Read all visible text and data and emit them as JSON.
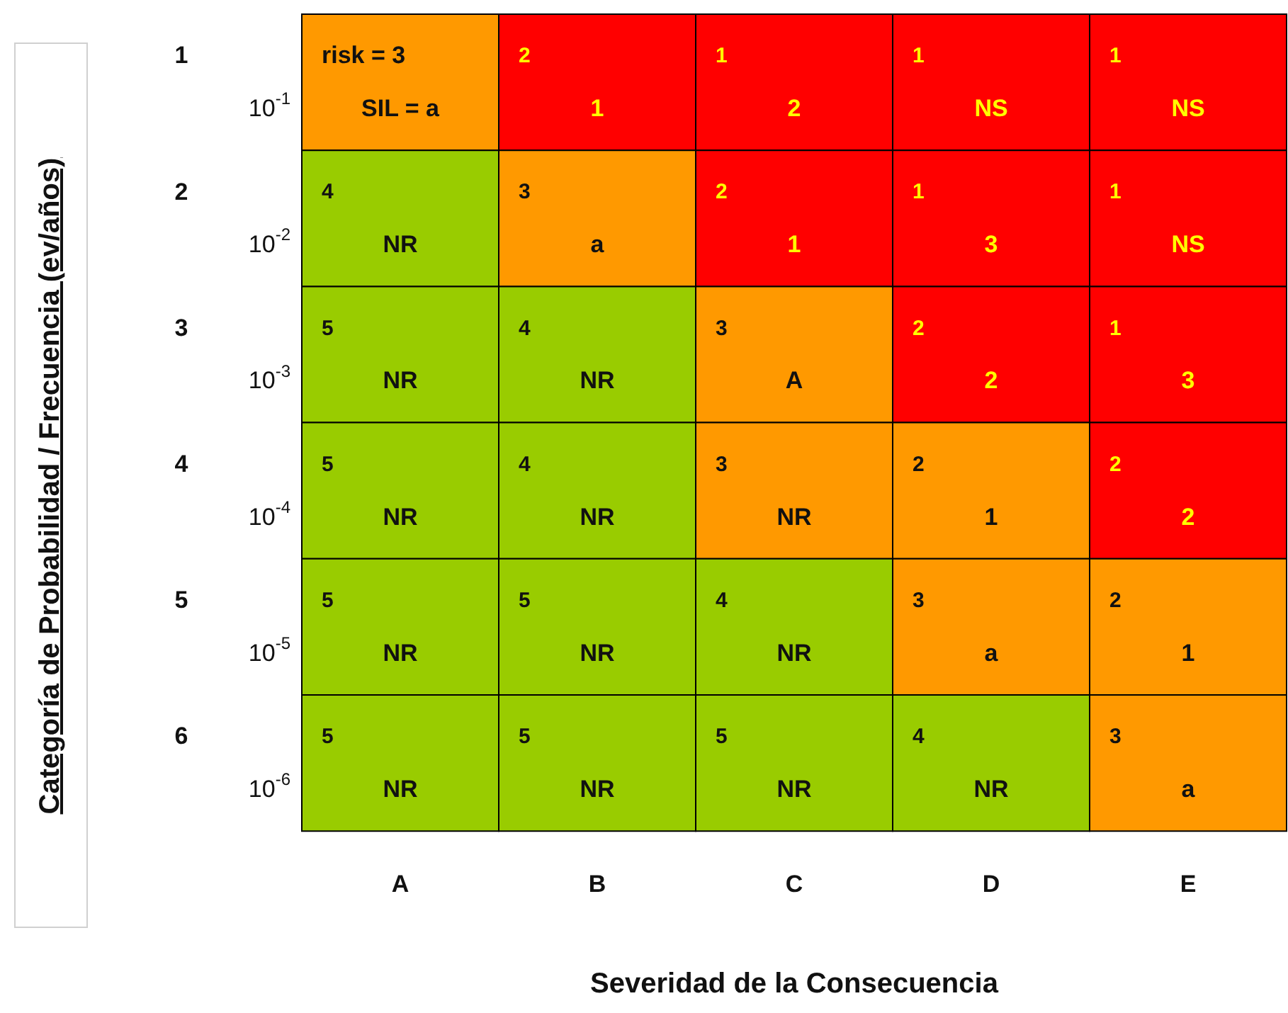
{
  "chart_data": {
    "type": "heatmap",
    "xlabel": "Severidad de la Consecuencia",
    "ylabel": "Categoría de Probabilidad / Frecuencia (ev/años)",
    "categories": [
      "A",
      "B",
      "C",
      "D",
      "E"
    ],
    "y_categories": [
      "1",
      "2",
      "3",
      "4",
      "5",
      "6"
    ],
    "y2_categories": [
      "10$^{-1}$",
      "10$^{-2}$",
      "10$^{-3}$",
      "10$^{-4}$",
      "10$^{-5}$",
      "10$^{-6}$"
    ],
    "cells": [
      [
        3,
        2,
        1,
        1,
        1
      ],
      [
        4,
        3,
        2,
        1,
        1
      ],
      [
        5,
        4,
        3,
        2,
        1
      ],
      [
        5,
        4,
        3,
        2,
        2
      ],
      [
        5,
        5,
        4,
        3,
        2
      ],
      [
        5,
        5,
        5,
        4,
        3
      ]
    ],
    "cell_labels": [
      [
        "risk = 3",
        "2",
        "1",
        "1",
        "1"
      ],
      [
        "4",
        "3",
        "2",
        "1",
        "1"
      ],
      [
        "5",
        "4",
        "3",
        "2",
        "1"
      ],
      [
        "5",
        "4",
        "3",
        "2",
        "2"
      ],
      [
        "5",
        "5",
        "4",
        "3",
        "2"
      ],
      [
        "5",
        "5",
        "5",
        "4",
        "3"
      ]
    ],
    "annotations": [
      "SIL = a",
      "1",
      "2",
      "NS",
      "NS",
      "NR",
      "a",
      "1",
      "3",
      "NS",
      "NR",
      "NR",
      "A",
      "2",
      "3",
      "NR",
      "NR",
      "NR",
      "1",
      "2",
      "NR",
      "NR",
      "NR",
      "a",
      "1",
      "NR",
      "NR",
      "NR",
      "NR",
      "a"
    ],
    "colors": [
      [
        "#ff9900",
        "#ff0000",
        "#ff0000",
        "#ff0000",
        "#ff0000"
      ],
      [
        "#99cc00",
        "#ff9900",
        "#ff0000",
        "#ff0000",
        "#ff0000"
      ],
      [
        "#99cc00",
        "#99cc00",
        "#ff9900",
        "#ff0000",
        "#ff0000"
      ],
      [
        "#99cc00",
        "#99cc00",
        "#ff9900",
        "#ff9900",
        "#ff0000"
      ],
      [
        "#99cc00",
        "#99cc00",
        "#99cc00",
        "#ff9900",
        "#ff9900"
      ],
      [
        "#99cc00",
        "#99cc00",
        "#99cc00",
        "#99cc00",
        "#ff9900"
      ]
    ]
  }
}
